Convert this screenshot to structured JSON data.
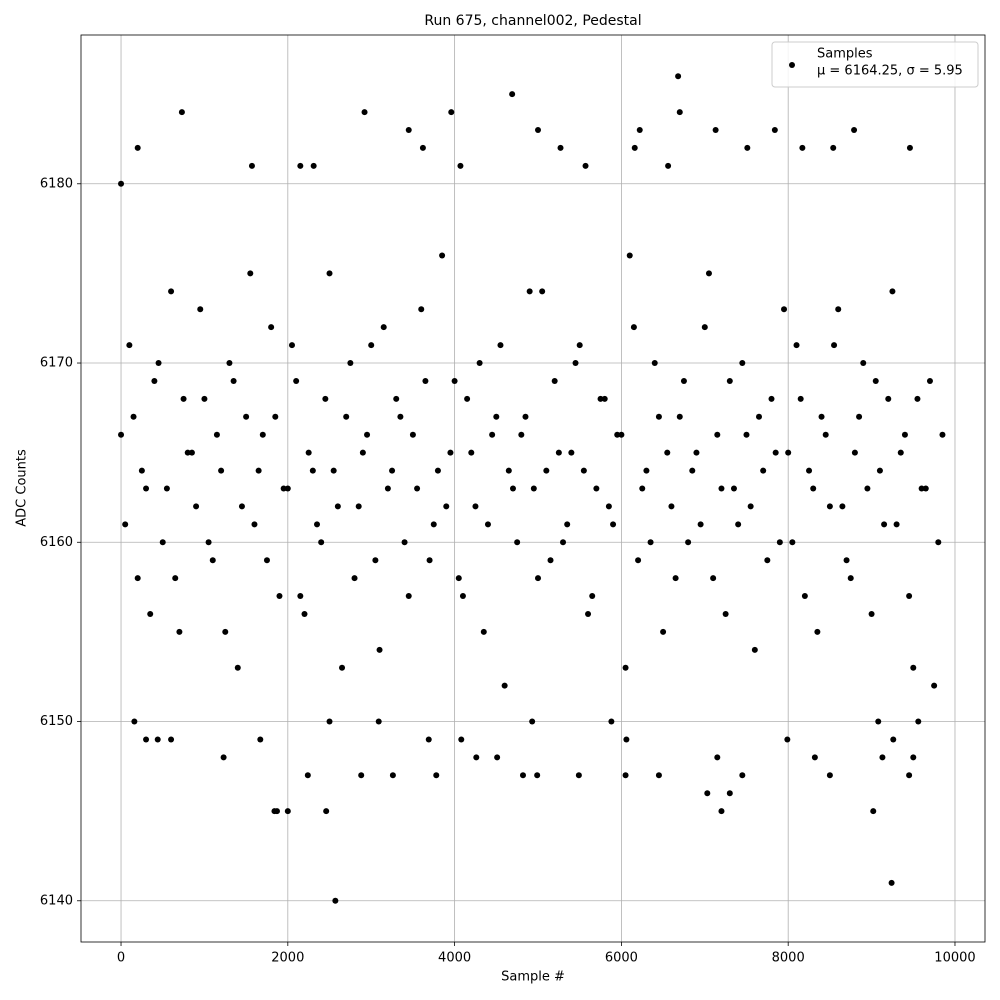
{
  "chart_data": {
    "type": "scatter",
    "title": "Run 675, channel002, Pedestal",
    "xlabel": "Sample #",
    "ylabel": "ADC Counts",
    "xlim": [
      -480,
      10360
    ],
    "ylim": [
      6137.7,
      6188.3
    ],
    "xticks": [
      0,
      2000,
      4000,
      6000,
      8000,
      10000
    ],
    "yticks": [
      6140,
      6150,
      6160,
      6170,
      6180
    ],
    "grid": true,
    "legend": "upper right",
    "annotation": "μ = 6164.25, σ = 5.95",
    "series": [
      {
        "name": "Samples",
        "color": "#000000",
        "x": [
          0,
          100,
          200,
          300,
          400,
          500,
          600,
          700,
          800,
          900,
          1000,
          1100,
          1200,
          1300,
          1400,
          1500,
          1600,
          1700,
          1800,
          1900,
          2000,
          2100,
          2200,
          2300,
          2400,
          2500,
          2600,
          2700,
          2800,
          2900,
          3000,
          3100,
          3200,
          3300,
          3400,
          3500,
          3600,
          3700,
          3800,
          3900,
          4000,
          4100,
          4200,
          4300,
          4400,
          4500,
          4600,
          4700,
          4800,
          4900,
          5000,
          5100,
          5200,
          5300,
          5400,
          5500,
          5600,
          5700,
          5800,
          5900,
          6000,
          6100,
          6200,
          6300,
          6400,
          6500,
          6600,
          6700,
          6800,
          6900,
          7000,
          7100,
          7200,
          7300,
          7400,
          7500,
          7600,
          7700,
          7800,
          7900,
          8000,
          8100,
          8200,
          8300,
          8400,
          8500,
          8600,
          8700,
          8800,
          8900,
          9000,
          9100,
          9200,
          9300,
          9400,
          9500,
          9600,
          9700,
          9800,
          50,
          150,
          250,
          350,
          450,
          550,
          650,
          750,
          850,
          950,
          1050,
          1150,
          1250,
          1350,
          1450,
          1550,
          1650,
          1750,
          1850,
          1950,
          2050,
          2150,
          2250,
          2350,
          2450,
          2550,
          2650,
          2750,
          2850,
          2950,
          3050,
          3150,
          3250,
          3350,
          3450,
          3550,
          3650,
          3750,
          3850,
          3950,
          4050,
          4150,
          4250,
          4350,
          4450,
          4550,
          4650,
          4750,
          4850,
          4950,
          5050,
          5150,
          5250,
          5350,
          5450,
          5550,
          5650,
          5750,
          5850,
          5950,
          6050,
          6150,
          6250,
          6350,
          6450,
          6550,
          6650,
          6750,
          6850,
          6950,
          7050,
          7150,
          7250,
          7350,
          7450,
          7550,
          7650,
          7750,
          7850,
          7950,
          8050,
          8150,
          8250,
          8350,
          8450,
          8550,
          8650,
          8750,
          8850,
          8950,
          9050,
          9150,
          9250,
          9350,
          9450,
          9550,
          9650,
          9750,
          9850,
          0,
          200,
          730,
          2920,
          3960,
          4690,
          6680,
          6700,
          2570,
          9240,
          1840,
          1870,
          2000,
          2460,
          7200,
          9020,
          7030,
          7300,
          1230,
          4260,
          4510,
          7150,
          8320,
          9130,
          9500,
          3450,
          5000,
          6220,
          7130,
          7840,
          8790,
          3620,
          5270,
          6160,
          7510,
          8170,
          8540,
          9460,
          1570,
          2150,
          2310,
          4070,
          5570,
          6560,
          160,
          5880,
          9080,
          9560,
          2500,
          3090,
          4930,
          300,
          600,
          1670,
          3690,
          4080,
          6060,
          7990,
          9260,
          440,
          2240,
          2880,
          3260,
          3780,
          4820,
          4990,
          5490,
          6050,
          6450,
          7450,
          8500,
          9450
        ],
        "values": [
          6166,
          6171,
          6158,
          6163,
          6169,
          6160,
          6174,
          6155,
          6165,
          6162,
          6168,
          6159,
          6164,
          6170,
          6153,
          6167,
          6161,
          6166,
          6172,
          6157,
          6163,
          6169,
          6156,
          6164,
          6160,
          6175,
          6162,
          6167,
          6158,
          6165,
          6171,
          6154,
          6163,
          6168,
          6160,
          6166,
          6173,
          6159,
          6164,
          6162,
          6169,
          6157,
          6165,
          6170,
          6161,
          6167,
          6152,
          6163,
          6166,
          6174,
          6158,
          6164,
          6169,
          6160,
          6165,
          6171,
          6156,
          6163,
          6168,
          6161,
          6166,
          6176,
          6159,
          6164,
          6170,
          6155,
          6162,
          6167,
          6160,
          6165,
          6172,
          6158,
          6163,
          6169,
          6161,
          6166,
          6154,
          6164,
          6168,
          6160,
          6165,
          6171,
          6157,
          6163,
          6167,
          6162,
          6173,
          6159,
          6165,
          6170,
          6156,
          6164,
          6168,
          6161,
          6166,
          6153,
          6163,
          6169,
          6160,
          6161,
          6167,
          6164,
          6156,
          6170,
          6163,
          6158,
          6168,
          6165,
          6173,
          6160,
          6166,
          6155,
          6169,
          6162,
          6175,
          6164,
          6159,
          6167,
          6163,
          6171,
          6157,
          6165,
          6161,
          6168,
          6164,
          6153,
          6170,
          6162,
          6166,
          6159,
          6172,
          6164,
          6167,
          6157,
          6163,
          6169,
          6161,
          6176,
          6165,
          6158,
          6168,
          6162,
          6155,
          6166,
          6171,
          6164,
          6160,
          6167,
          6163,
          6174,
          6159,
          6165,
          6161,
          6170,
          6164,
          6157,
          6168,
          6162,
          6166,
          6153,
          6172,
          6163,
          6160,
          6167,
          6165,
          6158,
          6169,
          6164,
          6161,
          6175,
          6166,
          6156,
          6163,
          6170,
          6162,
          6167,
          6159,
          6165,
          6173,
          6160,
          6168,
          6164,
          6155,
          6166,
          6171,
          6162,
          6158,
          6167,
          6163,
          6169,
          6161,
          6174,
          6165,
          6157,
          6168,
          6163,
          6152,
          6166,
          6180,
          6182,
          6184,
          6184,
          6184,
          6185,
          6186,
          6184,
          6140,
          6141,
          6145,
          6145,
          6145,
          6145,
          6145,
          6145,
          6146,
          6146,
          6148,
          6148,
          6148,
          6148,
          6148,
          6148,
          6148,
          6183,
          6183,
          6183,
          6183,
          6183,
          6183,
          6182,
          6182,
          6182,
          6182,
          6182,
          6182,
          6182,
          6181,
          6181,
          6181,
          6181,
          6181,
          6181,
          6150,
          6150,
          6150,
          6150,
          6150,
          6150,
          6150,
          6149,
          6149,
          6149,
          6149,
          6149,
          6149,
          6149,
          6149,
          6149,
          6147,
          6147,
          6147,
          6147,
          6147,
          6147,
          6147,
          6147,
          6147,
          6147,
          6147,
          6147
        ]
      }
    ]
  }
}
